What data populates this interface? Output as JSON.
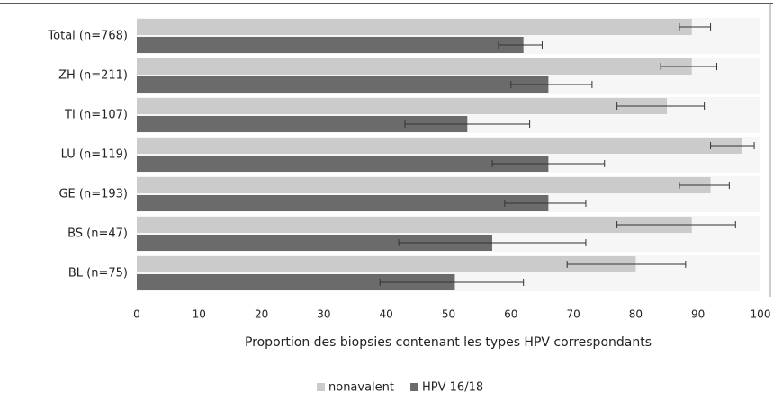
{
  "chart_data": {
    "type": "bar",
    "orientation": "horizontal",
    "x_label": "Proportion des biopsies contenant les types HPV correspondants",
    "categories": [
      "Total (n=768)",
      "ZH (n=211)",
      "TI (n=107)",
      "LU (n=119)",
      "GE (n=193)",
      "BS (n=47)",
      "BL (n=75)"
    ],
    "series": [
      {
        "name": "nonavalent",
        "color": "#cbcbcb",
        "values": [
          89,
          89,
          85,
          97,
          92,
          89,
          80
        ],
        "err_low": [
          87,
          84,
          77,
          92,
          87,
          77,
          69
        ],
        "err_high": [
          92,
          93,
          91,
          99,
          95,
          96,
          88
        ]
      },
      {
        "name": "HPV 16/18",
        "color": "#6b6b6b",
        "values": [
          62,
          66,
          53,
          66,
          66,
          57,
          51
        ],
        "err_low": [
          58,
          60,
          43,
          57,
          59,
          42,
          39
        ],
        "err_high": [
          65,
          73,
          63,
          75,
          72,
          72,
          62
        ]
      }
    ],
    "xlim": [
      0,
      100
    ],
    "xticks": [
      0,
      10,
      20,
      30,
      40,
      50,
      60,
      70,
      80,
      90,
      100
    ]
  }
}
